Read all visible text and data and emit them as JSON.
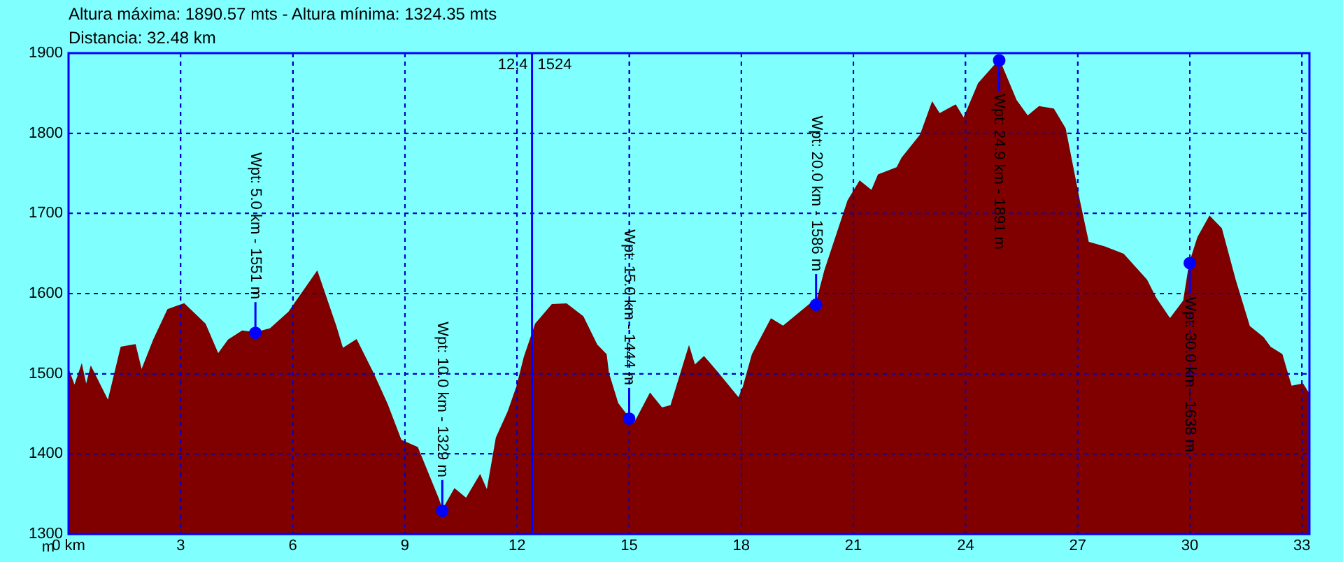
{
  "chart_data": {
    "type": "area",
    "title": "Altura máxima: 1890.57 mts - Altura mínima: 1324.35 mts",
    "subtitle": "Distancia: 32.48 km",
    "ylabel": "m",
    "xlim": [
      0,
      33.2
    ],
    "xticks": [
      {
        "value": 0,
        "label": "0 km"
      },
      3,
      6,
      9,
      12,
      15,
      18,
      21,
      24,
      27,
      30,
      33
    ],
    "ylim": [
      1300,
      1900
    ],
    "yticks": [
      1300,
      1400,
      1500,
      1600,
      1700,
      1800,
      1900
    ],
    "grid": true,
    "legend": false,
    "series": [
      {
        "color": "#800000",
        "x": [
          0,
          0.16,
          0.35,
          0.47,
          0.6,
          1.06,
          1.41,
          1.78,
          1.95,
          2.28,
          2.66,
          3.09,
          3.65,
          4.0,
          4.28,
          4.65,
          5.0,
          5.4,
          5.9,
          6.65,
          7.15,
          7.33,
          7.7,
          8.14,
          8.52,
          8.89,
          9.33,
          9.89,
          10.0,
          10.33,
          10.64,
          11.01,
          11.2,
          11.45,
          11.76,
          12.0,
          12.2,
          12.5,
          12.94,
          13.32,
          13.76,
          14.13,
          14.38,
          14.44,
          14.69,
          15.0,
          15.13,
          15.56,
          15.87,
          16.12,
          16.6,
          16.75,
          17.0,
          17.37,
          17.93,
          18.06,
          18.3,
          18.8,
          19.12,
          19.87,
          20.0,
          20.24,
          20.86,
          21.17,
          21.49,
          21.67,
          22.17,
          22.3,
          22.8,
          23.11,
          23.3,
          23.73,
          23.95,
          24.35,
          24.9,
          25.35,
          25.66,
          25.97,
          26.35,
          26.66,
          27.04,
          27.28,
          27.72,
          28.22,
          28.84,
          29.09,
          29.47,
          29.84,
          30.0,
          30.22,
          30.53,
          30.84,
          31.21,
          31.59,
          31.96,
          32.15,
          32.46,
          32.71,
          33.02,
          33.18
        ],
        "values": [
          1504,
          1484,
          1510,
          1484,
          1508,
          1465,
          1533,
          1536,
          1503,
          1542,
          1580,
          1587,
          1562,
          1524,
          1542,
          1553,
          1551,
          1556,
          1577,
          1627,
          1559,
          1531,
          1542,
          1501,
          1462,
          1417,
          1408,
          1344,
          1329,
          1356,
          1344,
          1373,
          1353,
          1420,
          1452,
          1484,
          1521,
          1562,
          1586,
          1587,
          1571,
          1536,
          1524,
          1501,
          1463,
          1444,
          1437,
          1475,
          1457,
          1460,
          1533,
          1510,
          1521,
          1501,
          1469,
          1484,
          1524,
          1568,
          1559,
          1588,
          1586,
          1629,
          1716,
          1740,
          1728,
          1748,
          1757,
          1769,
          1798,
          1838,
          1824,
          1835,
          1818,
          1862,
          1891,
          1841,
          1821,
          1833,
          1830,
          1806,
          1716,
          1664,
          1658,
          1649,
          1617,
          1594,
          1568,
          1591,
          1638,
          1670,
          1696,
          1681,
          1617,
          1559,
          1545,
          1533,
          1524,
          1484,
          1487,
          1475
        ]
      },
      {
        "type": "scatter",
        "color": "#0000ff",
        "marker": "circle",
        "x": [
          5.0,
          10.0,
          15.0,
          20.0,
          24.9,
          30.0
        ],
        "values": [
          1551,
          1329,
          1444,
          1586,
          1891,
          1638
        ],
        "value_labels": [
          "Wpt: 5.0 km - 1551 m",
          "Wpt: 10.0 km - 1329 m",
          "Wpt: 15.0 km - 1444 m",
          "Wpt: 20.0 km - 1586 m",
          "Wpt: 24.9 km - 1891 m",
          "Wpt: 30.0 km - 1638 m"
        ]
      }
    ],
    "ref_lines": [
      {
        "axis": "x",
        "value": 12.4,
        "label": "12,4",
        "color": "#0000ff"
      }
    ],
    "annotations": [
      "1524"
    ]
  }
}
